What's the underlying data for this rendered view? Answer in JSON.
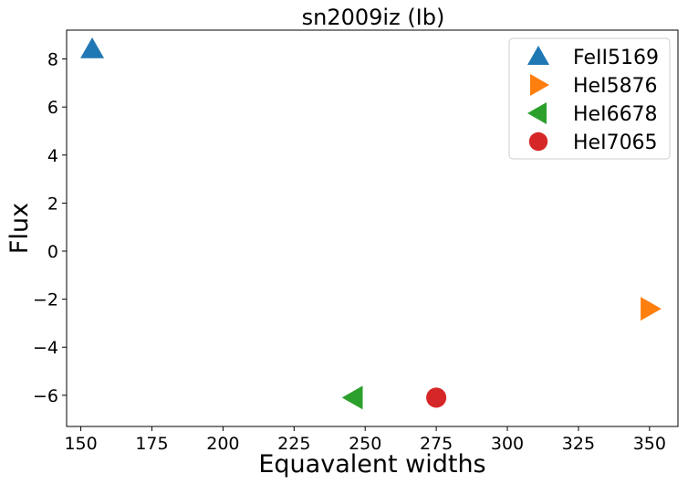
{
  "chart_data": {
    "type": "scatter",
    "title": "sn2009iz (Ib)",
    "xlabel": "Equavalent widths",
    "ylabel": "Flux",
    "xlim": [
      145,
      360
    ],
    "ylim": [
      -7.3,
      9.2
    ],
    "xticks": [
      150,
      175,
      200,
      225,
      250,
      275,
      300,
      325,
      350
    ],
    "yticks": [
      -6,
      -4,
      -2,
      0,
      2,
      4,
      6,
      8
    ],
    "xtick_labels": [
      "150",
      "175",
      "200",
      "225",
      "250",
      "275",
      "300",
      "325",
      "350"
    ],
    "ytick_labels": [
      "−6",
      "−4",
      "−2",
      "0",
      "2",
      "4",
      "6",
      "8"
    ],
    "grid": false,
    "legend_position": "top-right",
    "series": [
      {
        "name": "FeII5169",
        "marker": "triangle-up",
        "color": "#1f77b4",
        "x": [
          154
        ],
        "y": [
          8.4
        ]
      },
      {
        "name": "HeI5876",
        "marker": "triangle-right",
        "color": "#ff7f0e",
        "x": [
          350
        ],
        "y": [
          -2.4
        ]
      },
      {
        "name": "HeI6678",
        "marker": "triangle-left",
        "color": "#2ca02c",
        "x": [
          246
        ],
        "y": [
          -6.1
        ]
      },
      {
        "name": "HeI7065",
        "marker": "circle",
        "color": "#d62728",
        "x": [
          275
        ],
        "y": [
          -6.1
        ]
      }
    ]
  }
}
